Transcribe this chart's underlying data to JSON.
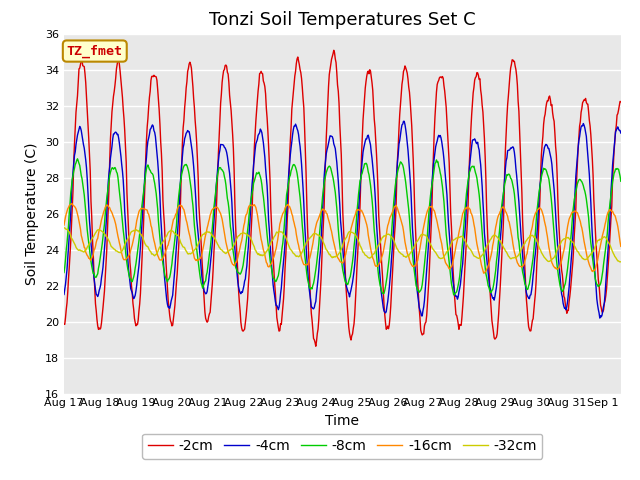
{
  "title": "Tonzi Soil Temperatures Set C",
  "xlabel": "Time",
  "ylabel": "Soil Temperature (C)",
  "ylim": [
    16,
    36
  ],
  "n_days": 15.5,
  "x_tick_labels": [
    "Aug 17",
    "Aug 18",
    "Aug 19",
    "Aug 20",
    "Aug 21",
    "Aug 22",
    "Aug 23",
    "Aug 24",
    "Aug 25",
    "Aug 26",
    "Aug 27",
    "Aug 28",
    "Aug 29",
    "Aug 30",
    "Aug 31",
    "Sep 1"
  ],
  "series": {
    "-2cm": {
      "color": "#dd0000",
      "lw": 1.0,
      "amp": 6.5,
      "mean": 27.0,
      "phase": 0.0,
      "skew": 0.6,
      "noise": 0.5,
      "amp_var": 2.5
    },
    "-4cm": {
      "color": "#0000cc",
      "lw": 1.0,
      "amp": 4.5,
      "mean": 26.0,
      "phase": 0.06,
      "skew": 0.5,
      "noise": 0.3,
      "amp_var": 1.5
    },
    "-8cm": {
      "color": "#00cc00",
      "lw": 1.0,
      "amp": 3.0,
      "mean": 25.5,
      "phase": 0.12,
      "skew": 0.4,
      "noise": 0.2,
      "amp_var": 1.0
    },
    "-16cm": {
      "color": "#ff8800",
      "lw": 1.0,
      "amp": 1.5,
      "mean": 25.0,
      "phase": 0.28,
      "skew": 0.3,
      "noise": 0.15,
      "amp_var": 0.5
    },
    "-32cm": {
      "color": "#cccc00",
      "lw": 1.0,
      "amp": 0.6,
      "mean": 24.5,
      "phase": 0.5,
      "skew": 0.2,
      "noise": 0.1,
      "amp_var": 0.2
    }
  },
  "bg_color": "#e8e8e8",
  "fig_bg": "#ffffff",
  "legend_label": "TZ_fmet",
  "legend_label_color": "#cc0000",
  "legend_box_facecolor": "#ffffcc",
  "legend_box_edgecolor": "#bb8800",
  "title_fontsize": 13,
  "axis_label_fontsize": 10,
  "tick_fontsize": 8,
  "legend_fontsize": 10,
  "pts_per_day": 48
}
